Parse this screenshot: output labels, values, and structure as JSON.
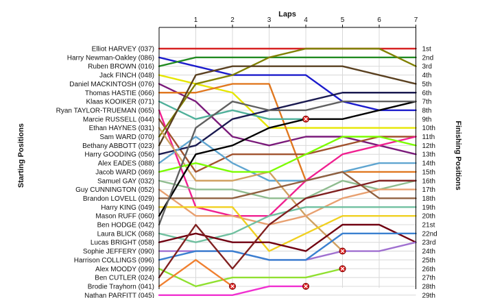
{
  "chart_data": {
    "type": "line",
    "title": "Laps",
    "ylabel_left": "Starting Positions",
    "ylabel_right": "Finishing Positions",
    "x_ticks": [
      1,
      2,
      3,
      4,
      5,
      6,
      7
    ],
    "grid": true,
    "starting_labels": [
      "Elliot HARVEY (037)",
      "Harry Newman-Oakley (086)",
      "Ruben BROWN (016)",
      "Jack FINCH (048)",
      "Daniel MACKINTOSH (076)",
      "Thomas HASTIE (066)",
      "Klaas KOOIKER (071)",
      "Ryan TAYLOR-TRUEMAN (065)",
      "Marcie RUSSELL (044)",
      "Ethan HAYNES (031)",
      "Sam WARD (070)",
      "Bethany ABBOTT (023)",
      "Harry GOODING (056)",
      "Alex EADES (088)",
      "Jacob WARD (069)",
      "Samuel GAY (032)",
      "Guy CUNNINGTON (052)",
      "Brandon LOVELL (029)",
      "Harry KING (049)",
      "Mason RUFF (060)",
      "Ben HODGE (042)",
      "Laura BLICK (068)",
      "Lucas BRIGHT (058)",
      "Sophie JEFFERY (090)",
      "Harrison COLLINGS (096)",
      "Alex MOODY (099)",
      "Ben CUTLER (024)",
      "Brodie Trayhorn (041)",
      "Nathan PARFITT (045)"
    ],
    "finishing_labels": [
      "1st",
      "2nd",
      "3rd",
      "4th",
      "5th",
      "6th",
      "7th",
      "8th",
      "9th",
      "10th",
      "11th",
      "12th",
      "13th",
      "14th",
      "15th",
      "16th",
      "17th",
      "18th",
      "19th",
      "20th",
      "21st",
      "22nd",
      "23rd",
      "24th",
      "25th",
      "26th",
      "27th",
      "28th",
      "29th"
    ],
    "series": [
      {
        "color": "#d62020",
        "positions": [
          1,
          1,
          1,
          1,
          1,
          1,
          1,
          1
        ]
      },
      {
        "color": "#1b1bcc",
        "positions": [
          2,
          3,
          4,
          4,
          4,
          7,
          8,
          8
        ]
      },
      {
        "color": "#228b22",
        "positions": [
          3,
          2,
          2,
          2,
          2,
          2,
          2,
          2
        ]
      },
      {
        "color": "#e6e600",
        "positions": [
          4,
          5,
          6,
          10,
          10,
          10,
          10,
          10
        ]
      },
      {
        "color": "#7a1a7a",
        "positions": [
          5,
          7,
          11,
          12,
          11,
          11,
          12,
          13
        ]
      },
      {
        "color": "#e07820",
        "positions": [
          6,
          6,
          5,
          5,
          16,
          15,
          15,
          15
        ]
      },
      {
        "color": "#a0522d",
        "positions": [
          9,
          15,
          13,
          13,
          13,
          12,
          11,
          11
        ]
      },
      {
        "color": "#4fb09a",
        "positions": [
          7,
          9,
          8,
          9,
          9,
          9,
          9,
          9
        ],
        "retired_at": 4
      },
      {
        "color": "#f02090",
        "positions": [
          8,
          19,
          20,
          20,
          16,
          13,
          12,
          11
        ]
      },
      {
        "color": "#808000",
        "positions": [
          11,
          5,
          4,
          2,
          1,
          1,
          1,
          3
        ]
      },
      {
        "color": "#5a4020",
        "positions": [
          12,
          4,
          3,
          3,
          3,
          3,
          4,
          5
        ]
      },
      {
        "color": "#1a1a50",
        "positions": [
          13,
          12,
          9,
          8,
          7,
          6,
          6,
          6
        ]
      },
      {
        "color": "#5fa5d0",
        "positions": [
          14,
          11,
          14,
          16,
          16,
          15,
          14,
          14
        ]
      },
      {
        "color": "#d0a060",
        "positions": [
          10,
          16,
          16,
          15,
          20,
          24,
          25,
          25
        ],
        "retired_at": 5
      },
      {
        "color": "#7cfc00",
        "positions": [
          15,
          14,
          15,
          15,
          13,
          11,
          11,
          12
        ]
      },
      {
        "color": "#8fbc8f",
        "positions": [
          16,
          17,
          17,
          18,
          18,
          16,
          17,
          16
        ]
      },
      {
        "color": "#e8a070",
        "positions": [
          17,
          20,
          20,
          21,
          20,
          18,
          17,
          17
        ]
      },
      {
        "color": "#906040",
        "positions": [
          18,
          18,
          18,
          17,
          16,
          15,
          18,
          18
        ]
      },
      {
        "color": "#f0d020",
        "positions": [
          19,
          19,
          19,
          24,
          22,
          20,
          20,
          20
        ]
      },
      {
        "color": "#000000",
        "positions": [
          20,
          13,
          12,
          10,
          9,
          9,
          8,
          7
        ]
      },
      {
        "color": "#606060",
        "positions": [
          21,
          10,
          7,
          8,
          8,
          7,
          7,
          7
        ]
      },
      {
        "color": "#70c0a0",
        "positions": [
          22,
          23,
          22,
          20,
          19,
          19,
          19,
          19
        ]
      },
      {
        "color": "#700010",
        "positions": [
          23,
          22,
          23,
          23,
          24,
          21,
          21,
          23
        ]
      },
      {
        "color": "#a070d0",
        "positions": [
          24,
          24,
          24,
          25,
          25,
          24,
          24,
          23
        ]
      },
      {
        "color": "#3a80d0",
        "positions": [
          25,
          24,
          24,
          25,
          25,
          22,
          22,
          22
        ]
      },
      {
        "color": "#90e030",
        "positions": [
          26,
          28,
          27,
          27,
          27,
          26,
          26,
          26
        ],
        "retired_at": 5
      },
      {
        "color": "#802020",
        "positions": [
          27,
          21,
          26,
          21,
          18,
          17,
          16,
          16
        ]
      },
      {
        "color": "#f08030",
        "positions": [
          28,
          25,
          28,
          28,
          28,
          28,
          28,
          28
        ],
        "retired_at": 2
      },
      {
        "color": "#f030d0",
        "positions": [
          29,
          29,
          29,
          28,
          28,
          28,
          28,
          28
        ],
        "retired_at": 4
      }
    ]
  }
}
